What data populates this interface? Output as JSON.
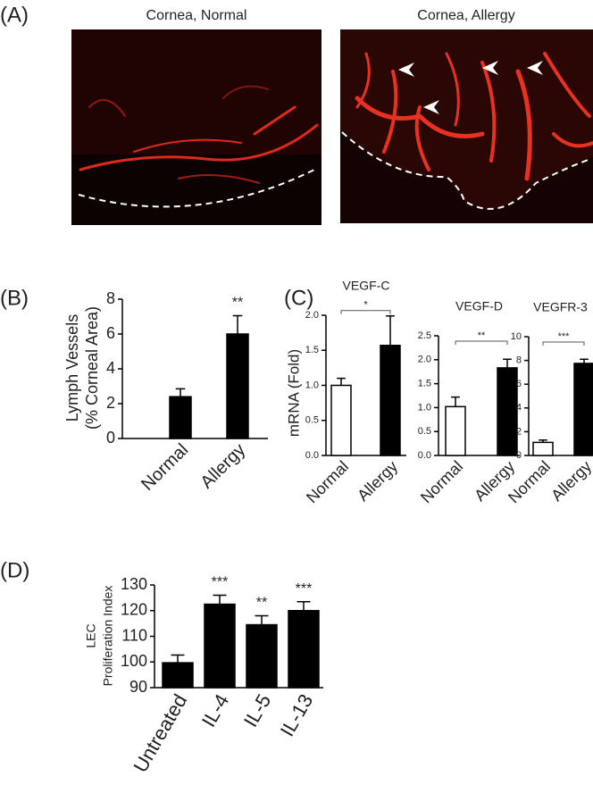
{
  "panel_a": {
    "label": "(A)",
    "images": [
      {
        "title": "Cornea, Normal"
      },
      {
        "title": "Cornea, Allergy"
      }
    ]
  },
  "chart_data": [
    {
      "type": "bar",
      "panel": "(B)",
      "ylabel": [
        "Lymph Vessels",
        "(% Corneal Area)"
      ],
      "categories": [
        "Normal",
        "Allergy"
      ],
      "values": [
        2.4,
        6.0
      ],
      "errors": [
        0.45,
        1.05
      ],
      "colors": [
        "#000000",
        "#000000"
      ],
      "significance": [
        null,
        "**"
      ],
      "ylim": [
        0,
        8
      ],
      "yticks": [
        0,
        2,
        4,
        6,
        8
      ]
    },
    {
      "type": "bar",
      "panel": "(C)",
      "title": "VEGF-C",
      "ylabel": [
        "mRNA (Fold)"
      ],
      "categories": [
        "Normal",
        "Allergy"
      ],
      "values": [
        1.0,
        1.57
      ],
      "errors": [
        0.1,
        0.42
      ],
      "colors": [
        "#ffffff",
        "#000000"
      ],
      "significance": "*",
      "ylim": [
        0,
        2.0
      ],
      "yticks": [
        {
          "value": 0,
          "label": "0.0"
        },
        0.5,
        {
          "value": 1,
          "label": "1.0"
        },
        1.5,
        {
          "value": 2,
          "label": "2.0"
        }
      ]
    },
    {
      "type": "bar",
      "title": "VEGF-D",
      "categories": [
        "Normal",
        "Allergy"
      ],
      "values": [
        1.02,
        1.83
      ],
      "errors": [
        0.2,
        0.18
      ],
      "colors": [
        "#ffffff",
        "#000000"
      ],
      "significance": "**",
      "ylim": [
        0,
        2.5
      ],
      "yticks": [
        {
          "value": 0,
          "label": "0.0"
        },
        0.5,
        {
          "value": 1,
          "label": "1.0"
        },
        1.5,
        {
          "value": 2,
          "label": "2.0"
        },
        2.5
      ]
    },
    {
      "type": "bar",
      "title": "VEGFR-3",
      "categories": [
        "Normal",
        "Allergy"
      ],
      "values": [
        1.1,
        7.75
      ],
      "errors": [
        0.2,
        0.35
      ],
      "colors": [
        "#ffffff",
        "#000000"
      ],
      "significance": "***",
      "ylim": [
        0,
        10
      ],
      "yticks": [
        0,
        2,
        4,
        6,
        8,
        10
      ]
    },
    {
      "type": "bar",
      "panel": "(D)",
      "ylabel": [
        "LEC",
        "Proliferation Index"
      ],
      "categories": [
        "Untreated",
        "IL-4",
        "IL-5",
        "IL-13"
      ],
      "values": [
        99.7,
        122.5,
        114.5,
        120
      ],
      "errors": [
        3,
        3.5,
        3.5,
        3.5
      ],
      "colors": [
        "#000000",
        "#000000",
        "#000000",
        "#000000"
      ],
      "significance": [
        null,
        "***",
        "**",
        "***"
      ],
      "ylim": [
        90,
        130
      ],
      "yticks": [
        90,
        100,
        110,
        120,
        130
      ]
    }
  ]
}
